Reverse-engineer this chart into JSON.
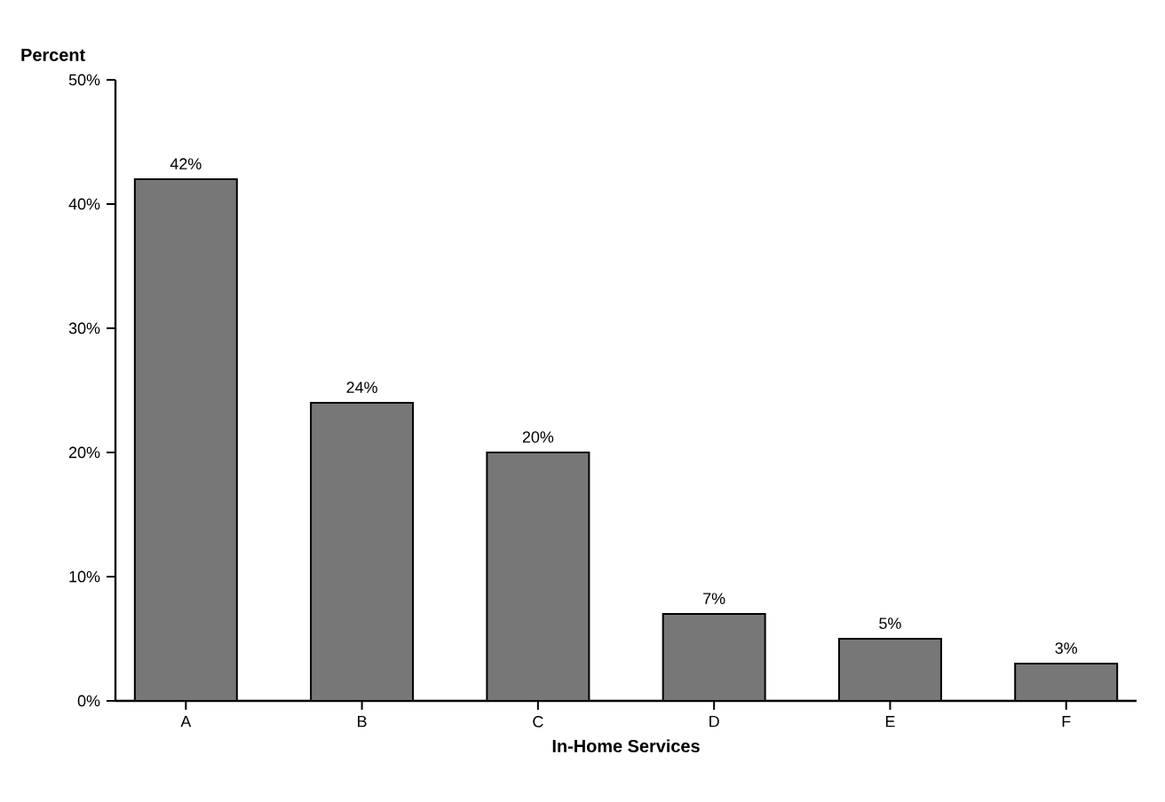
{
  "chart_data": {
    "type": "bar",
    "xlabel": "In-Home Services",
    "ylabel": "Percent",
    "categories": [
      "A",
      "B",
      "C",
      "D",
      "E",
      "F"
    ],
    "values": [
      42,
      24,
      20,
      7,
      5,
      3
    ],
    "value_labels": [
      "42%",
      "24%",
      "20%",
      "7%",
      "5%",
      "3%"
    ],
    "color": "#777777",
    "ylim": [
      0,
      50
    ],
    "yticks": [
      {
        "value": 0,
        "label": "0%"
      },
      {
        "value": 10,
        "label": "10%"
      },
      {
        "value": 20,
        "label": "20%"
      },
      {
        "value": 30,
        "label": "30%"
      },
      {
        "value": 40,
        "label": "40%"
      },
      {
        "value": 50,
        "label": "50%"
      }
    ],
    "grid": false
  }
}
